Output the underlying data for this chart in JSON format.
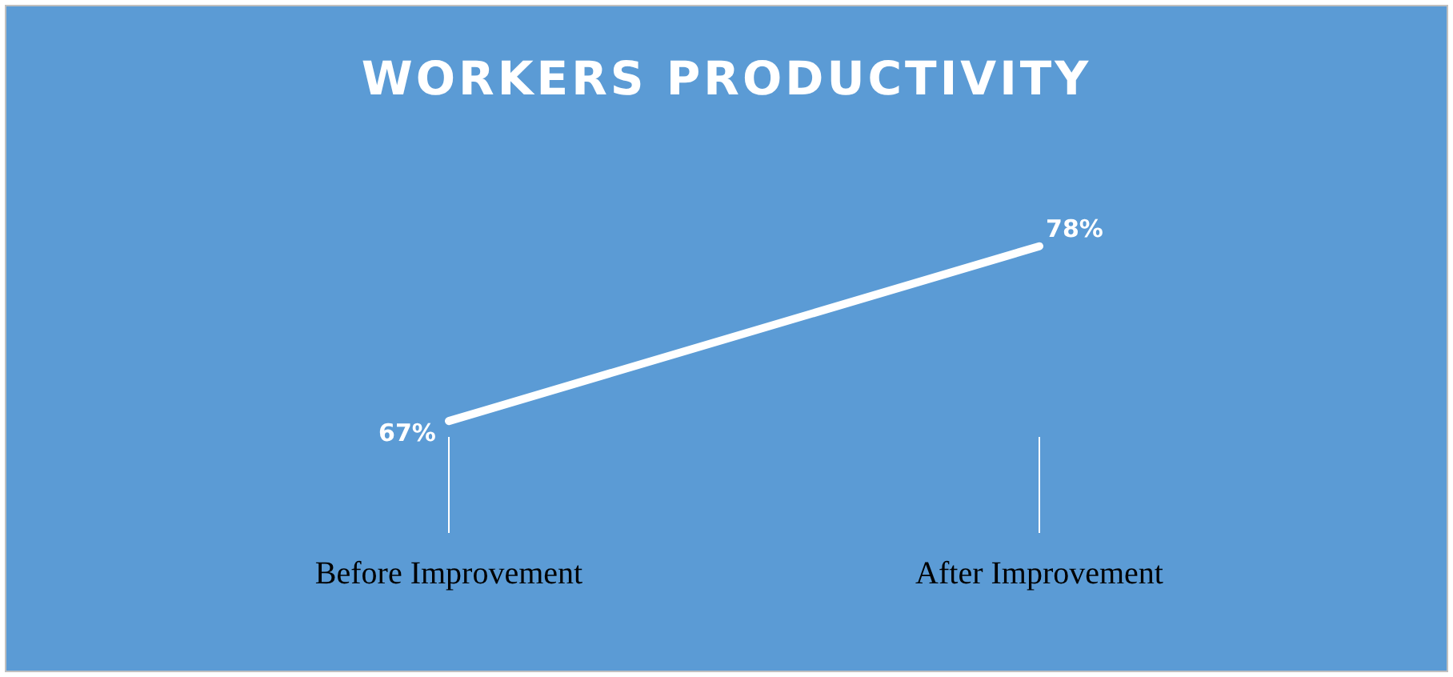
{
  "chart_data": {
    "type": "line",
    "title": "WORKERS PRODUCTIVITY",
    "categories": [
      "Before Improvement",
      "After Improvement"
    ],
    "series": [
      {
        "color": "#ffffff",
        "values": [
          67,
          78
        ],
        "value_labels": [
          "67%",
          "78%"
        ]
      }
    ],
    "legend": false,
    "grid": false,
    "marker": "none",
    "line_style": "solid",
    "tick_labels": "x"
  }
}
